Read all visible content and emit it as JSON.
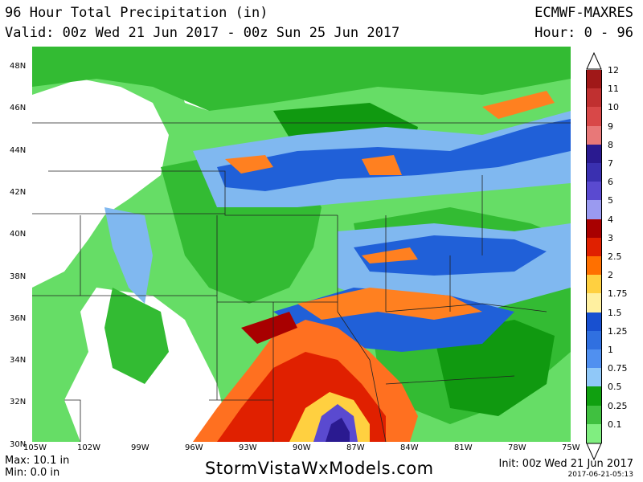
{
  "header": {
    "title": "96 Hour Total Precipitation (in)",
    "valid": "Valid: 00z Wed 21 Jun 2017 - 00z Sun 25 Jun 2017",
    "model": "ECMWF-MAXRES",
    "hours": "Hour: 0 - 96"
  },
  "map": {
    "lat_labels": [
      "48N",
      "46N",
      "44N",
      "42N",
      "40N",
      "38N",
      "36N",
      "34N",
      "32N",
      "30N"
    ],
    "lon_labels": [
      "105W",
      "102W",
      "99W",
      "96W",
      "93W",
      "90W",
      "87W",
      "84W",
      "81W",
      "78W",
      "75W"
    ]
  },
  "legend": {
    "labels": [
      "12",
      "11",
      "10",
      "9",
      "8",
      "7",
      "6",
      "5",
      "4",
      "3",
      "2.5",
      "2",
      "1.75",
      "1.5",
      "1.25",
      "1",
      "0.75",
      "0.5",
      "0.25",
      "0.1"
    ],
    "colors": [
      "#a01818",
      "#c03030",
      "#d84848",
      "#e87878",
      "#2a1a90",
      "#3a30b0",
      "#5a4ad0",
      "#9a9af0",
      "#a80000",
      "#e02000",
      "#ff7000",
      "#ffd040",
      "#fff0a0",
      "#1850d0",
      "#3070e0",
      "#5090f0",
      "#90c8f8",
      "#10a010",
      "#40c040",
      "#80ee80"
    ]
  },
  "footer": {
    "max": "Max: 10.1 in",
    "min": "Min: 0.0 in",
    "credit": "StormVistaWxModels.com",
    "init": "Init: 00z Wed 21 Jun 2017",
    "stamp": "2017-06-21-05:13"
  }
}
